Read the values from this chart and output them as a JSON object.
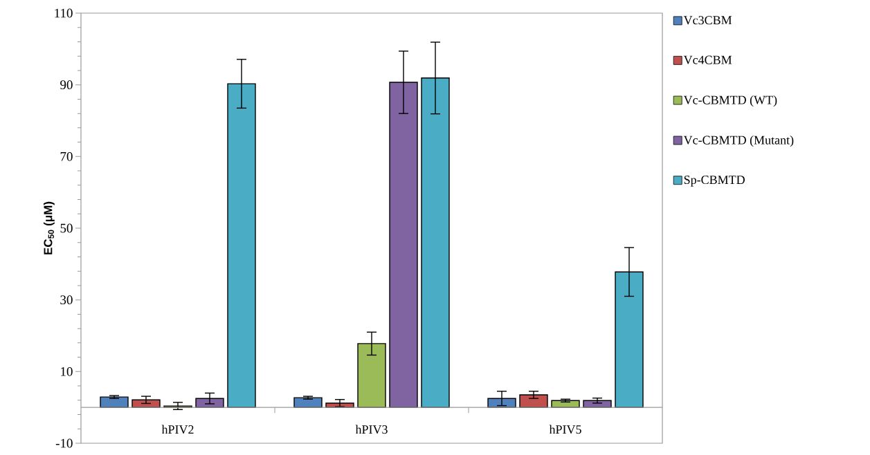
{
  "chart_data": {
    "type": "bar",
    "ylabel": "EC$_{50}$ (μM)",
    "categories": [
      "hPIV2",
      "hPIV3",
      "hPIV5"
    ],
    "series": [
      {
        "name": "Vc3CBM",
        "color": "#4f81bd",
        "values": [
          2.9,
          2.7,
          2.5
        ],
        "errors": [
          0.4,
          0.4,
          2
        ]
      },
      {
        "name": "Vc4CBM",
        "color": "#c0504d",
        "values": [
          2.1,
          1.2,
          3.5
        ],
        "errors": [
          1,
          1,
          1
        ]
      },
      {
        "name": "Vc-CBMTD (WT)",
        "color": "#9bbb59",
        "values": [
          0.4,
          17.8,
          1.9
        ],
        "errors": [
          1,
          3.2,
          0.4
        ]
      },
      {
        "name": "Vc-CBMTD (Mutant)",
        "color": "#8064a2",
        "values": [
          2.5,
          90.7,
          1.9
        ],
        "errors": [
          1.5,
          8.7,
          0.7
        ]
      },
      {
        "name": "Sp-CBMTD",
        "color": "#4bacc6",
        "values": [
          90.3,
          91.9,
          37.8
        ],
        "errors": [
          6.8,
          10,
          6.8
        ]
      }
    ],
    "ylim": [
      -10,
      110
    ],
    "yticks": [
      -10,
      10,
      30,
      50,
      70,
      90,
      110
    ],
    "legend": "right"
  }
}
